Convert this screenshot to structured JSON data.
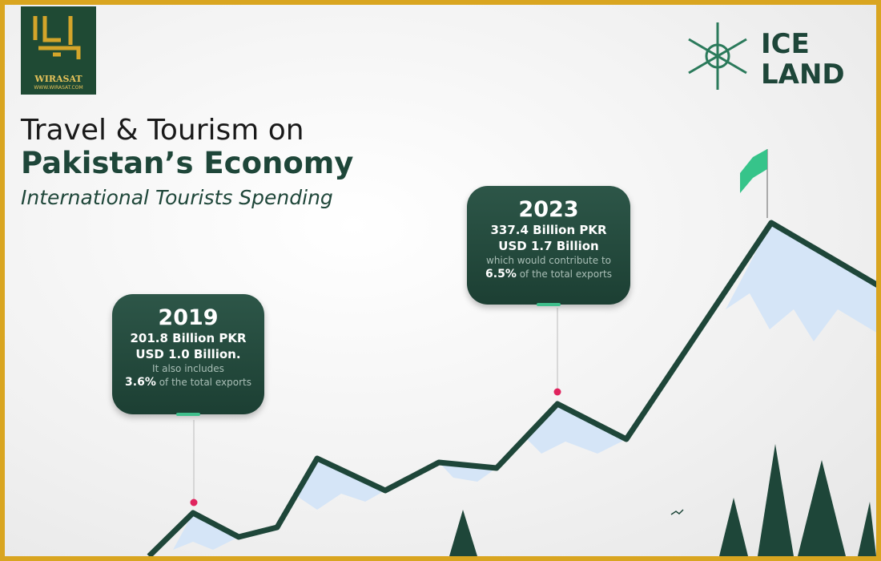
{
  "logo": {
    "name": "WIRASAT",
    "url": "WWW.WIRASAT.COM"
  },
  "brand": {
    "line1": "ICE",
    "line2": "LAND"
  },
  "header": {
    "title_line1": "Travel & Tourism on",
    "title_line2": "Pakistan’s Economy",
    "subtitle": "International Tourists Spending"
  },
  "callouts": [
    {
      "year": "2019",
      "pkr": "201.8 Billion PKR",
      "usd": "USD 1.0 Billion.",
      "note": "It also includes",
      "share": "3.6%",
      "share_text": "of the total exports"
    },
    {
      "year": "2023",
      "pkr": "337.4 Billion PKR",
      "usd": "USD 1.7 Billion",
      "note": "which would contribute to",
      "share": "6.5%",
      "share_text": "of the total exports"
    }
  ]
}
